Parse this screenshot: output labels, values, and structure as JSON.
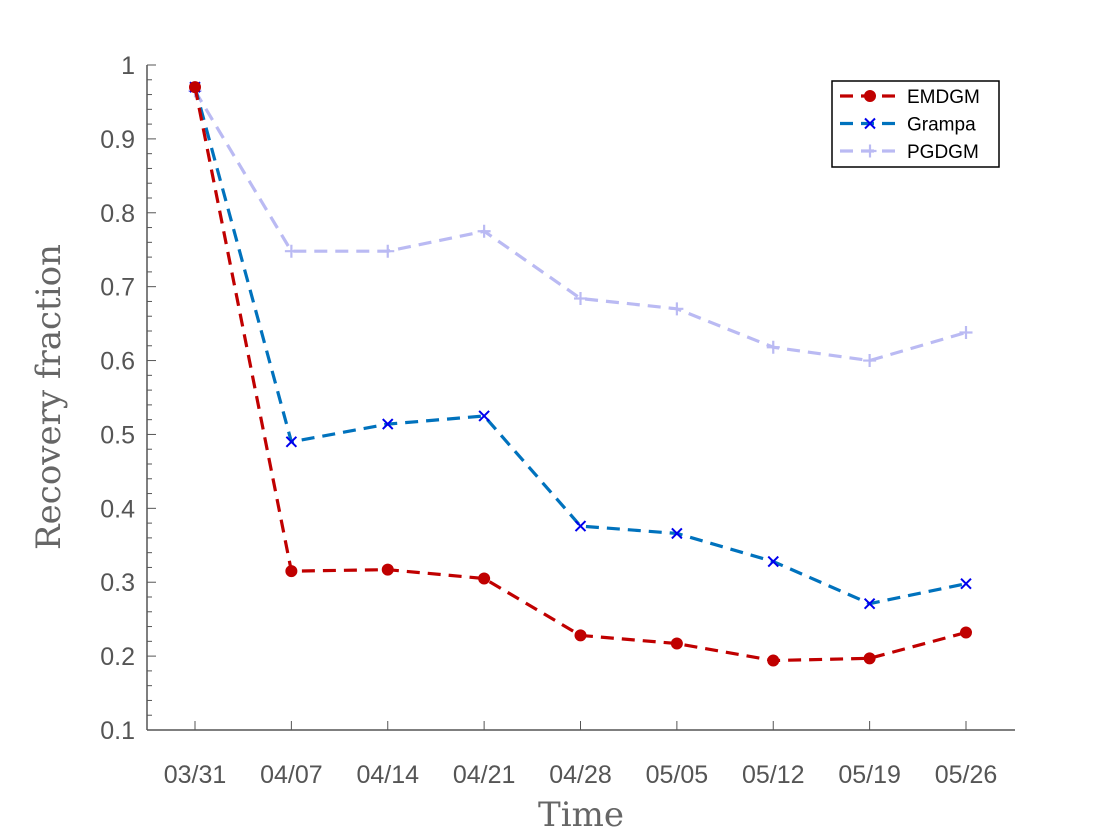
{
  "chart_data": {
    "type": "line",
    "xlabel": "Time",
    "ylabel": "Recovery fraction",
    "categories": [
      "03/31",
      "04/07",
      "04/14",
      "04/21",
      "04/28",
      "05/05",
      "05/12",
      "05/19",
      "05/26"
    ],
    "ylim": [
      0.1,
      1
    ],
    "yticks": [
      0.1,
      0.2,
      0.3,
      0.4,
      0.5,
      0.6,
      0.7,
      0.8,
      0.9,
      1
    ],
    "ytick_labels": [
      "0.1",
      "0.2",
      "0.3",
      "0.4",
      "0.5",
      "0.6",
      "0.7",
      "0.8",
      "0.9",
      "1"
    ],
    "grid": false,
    "legend_position": "top-right",
    "series": [
      {
        "name": "EMDGM",
        "color": "#c00000",
        "marker": "dot",
        "line_style": "dashed",
        "values": [
          0.97,
          0.315,
          0.317,
          0.305,
          0.228,
          0.217,
          0.194,
          0.197,
          0.232
        ]
      },
      {
        "name": "Grampa",
        "color": "#0072bd",
        "marker_color": "#0000ee",
        "marker": "x",
        "line_style": "dashed",
        "values": [
          0.97,
          0.49,
          0.514,
          0.525,
          0.376,
          0.366,
          0.328,
          0.271,
          0.298
        ]
      },
      {
        "name": "PGDGM",
        "color": "#babaf3",
        "marker": "plus",
        "line_style": "dashed",
        "values": [
          0.965,
          0.748,
          0.748,
          0.775,
          0.684,
          0.67,
          0.618,
          0.6,
          0.638
        ]
      }
    ]
  }
}
